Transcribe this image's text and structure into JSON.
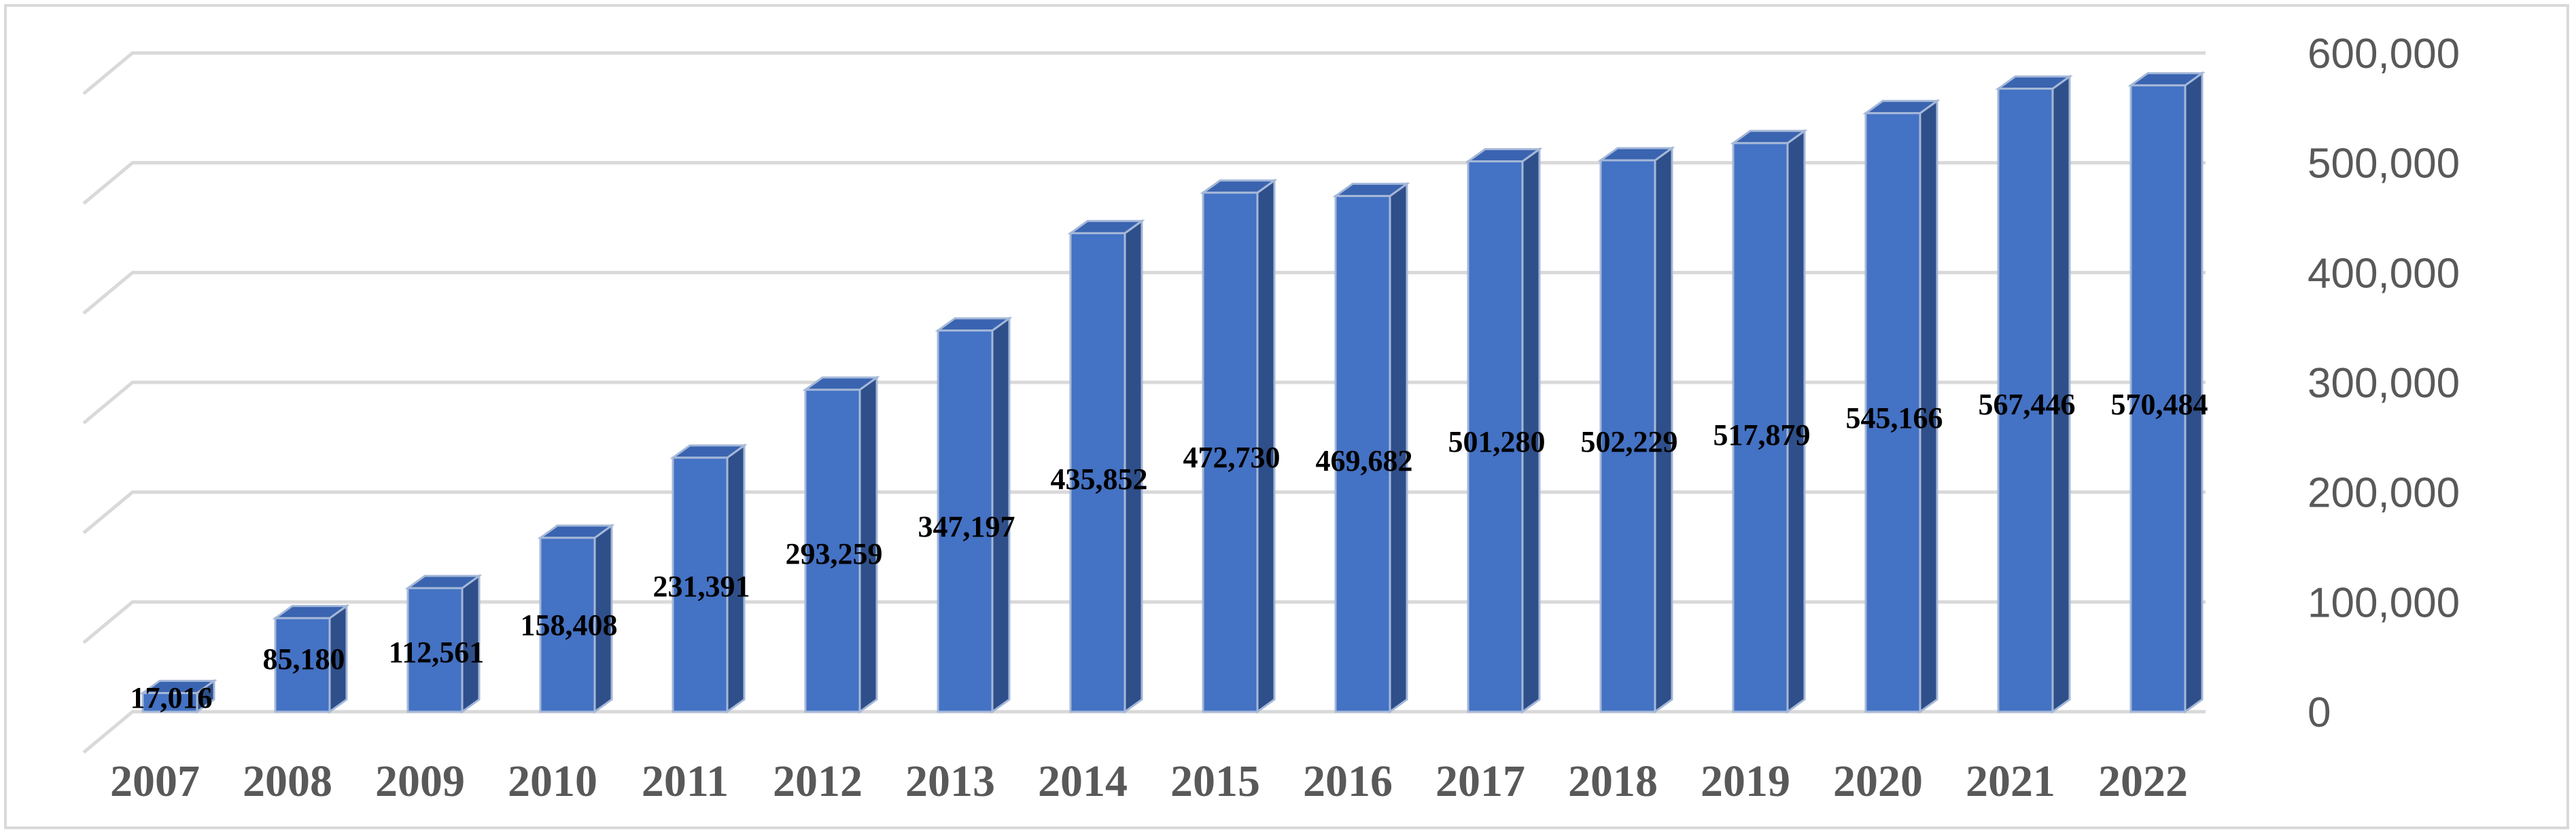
{
  "chart_data": {
    "type": "bar",
    "title": "",
    "xlabel": "",
    "ylabel": "",
    "categories": [
      "2007",
      "2008",
      "2009",
      "2010",
      "2011",
      "2012",
      "2013",
      "2014",
      "2015",
      "2016",
      "2017",
      "2018",
      "2019",
      "2020",
      "2021",
      "2022"
    ],
    "values": [
      17016,
      85180,
      112561,
      158408,
      231391,
      293259,
      347197,
      435852,
      472730,
      469682,
      501280,
      502229,
      517879,
      545166,
      567446,
      570484
    ],
    "value_labels": [
      "17,016",
      "85,180",
      "112,561",
      "158,408",
      "231,391",
      "293,259",
      "347,197",
      "435,852",
      "472,730",
      "469,682",
      "501,280",
      "502,229",
      "517,879",
      "545,166",
      "567,446",
      "570,484"
    ],
    "ylim": [
      0,
      600000
    ],
    "yticks": [
      0,
      100000,
      200000,
      300000,
      400000,
      500000,
      600000
    ],
    "ytick_labels": [
      "0",
      "100,000",
      "200,000",
      "300,000",
      "400,000",
      "500,000",
      "600,000"
    ],
    "y_axis_side": "right",
    "grid": true,
    "style": "3d-column",
    "bar_color": "#4472c4",
    "bar_side_color": "#2f4f8a",
    "bar_top_color": "#3a64b0",
    "bar_edge_color": "#a5b8d8",
    "grid_color": "#d9d9d9"
  }
}
